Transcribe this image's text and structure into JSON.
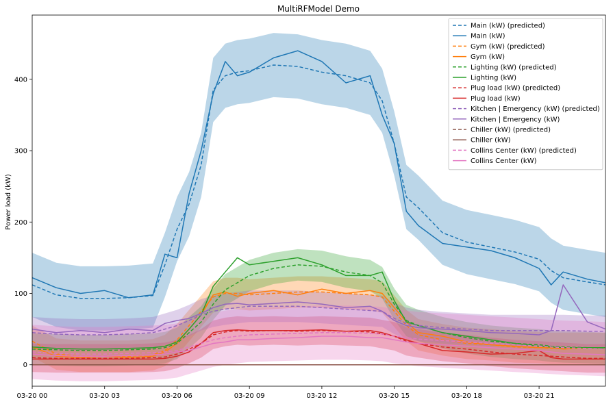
{
  "chart_data": {
    "type": "line",
    "title": "MultiRFModel Demo",
    "xlabel": "",
    "ylabel": "Power load (kW)",
    "x_unit": "hours since 03-20 00:00",
    "xlim": [
      0,
      23.75
    ],
    "ylim": [
      -30,
      490
    ],
    "xticks": [
      {
        "x": 0,
        "label": "03-20 00"
      },
      {
        "x": 3,
        "label": "03-20 03"
      },
      {
        "x": 6,
        "label": "03-20 06"
      },
      {
        "x": 9,
        "label": "03-20 09"
      },
      {
        "x": 12,
        "label": "03-20 12"
      },
      {
        "x": 15,
        "label": "03-20 15"
      },
      {
        "x": 18,
        "label": "03-20 18"
      },
      {
        "x": 21,
        "label": "03-20 21"
      }
    ],
    "yticks": [
      0,
      100,
      200,
      300,
      400
    ],
    "grid": false,
    "legend_position": "top-right",
    "hours": [
      0,
      1,
      2,
      3,
      4,
      5,
      5.5,
      6,
      6.5,
      7,
      7.5,
      8,
      8.5,
      9,
      10,
      11,
      12,
      13,
      14,
      14.5,
      15,
      15.5,
      16,
      17,
      18,
      19,
      20,
      21,
      21.5,
      22,
      23,
      23.75
    ],
    "series": [
      {
        "name": "Main (kW) (predicted)",
        "color": "#1f77b4",
        "dash": true,
        "band": 45,
        "band_opacity": 0.3,
        "values": [
          112,
          98,
          93,
          93,
          94,
          97,
          140,
          190,
          225,
          280,
          385,
          405,
          410,
          412,
          420,
          418,
          410,
          405,
          395,
          370,
          310,
          235,
          220,
          185,
          172,
          165,
          158,
          148,
          132,
          122,
          116,
          112
        ]
      },
      {
        "name": "Main (kW)",
        "color": "#1f77b4",
        "dash": false,
        "values": [
          122,
          108,
          100,
          104,
          94,
          98,
          155,
          150,
          240,
          300,
          380,
          425,
          405,
          410,
          430,
          440,
          425,
          395,
          405,
          350,
          310,
          215,
          195,
          170,
          165,
          160,
          150,
          135,
          112,
          130,
          120,
          115
        ]
      },
      {
        "name": "Gym (kW) (predicted)",
        "color": "#ff7f0e",
        "dash": true,
        "band": 22,
        "band_opacity": 0.3,
        "values": [
          33,
          15,
          12,
          12,
          12,
          14,
          20,
          35,
          55,
          75,
          95,
          100,
          100,
          98,
          100,
          102,
          102,
          100,
          98,
          95,
          75,
          55,
          42,
          35,
          30,
          28,
          25,
          24,
          23,
          23,
          23,
          23
        ]
      },
      {
        "name": "Gym (kW)",
        "color": "#ff7f0e",
        "dash": false,
        "values": [
          25,
          12,
          10,
          12,
          10,
          12,
          18,
          30,
          50,
          70,
          98,
          102,
          96,
          100,
          104,
          98,
          106,
          100,
          104,
          100,
          80,
          60,
          45,
          40,
          32,
          28,
          26,
          24,
          24,
          22,
          24,
          24
        ]
      },
      {
        "name": "Lighting (kW) (predicted)",
        "color": "#2ca02c",
        "dash": true,
        "band": 22,
        "band_opacity": 0.3,
        "values": [
          22,
          21,
          20,
          20,
          21,
          22,
          24,
          30,
          45,
          60,
          85,
          105,
          115,
          125,
          135,
          140,
          138,
          130,
          125,
          115,
          85,
          62,
          55,
          45,
          38,
          33,
          30,
          28,
          26,
          25,
          24,
          23
        ]
      },
      {
        "name": "Lighting (kW)",
        "color": "#2ca02c",
        "dash": false,
        "values": [
          25,
          23,
          22,
          22,
          23,
          24,
          26,
          32,
          50,
          70,
          110,
          130,
          150,
          140,
          145,
          150,
          140,
          125,
          125,
          130,
          90,
          60,
          55,
          45,
          40,
          35,
          30,
          26,
          25,
          24,
          24,
          24
        ]
      },
      {
        "name": "Plug load (kW) (predicted)",
        "color": "#d62728",
        "dash": true,
        "band": 20,
        "band_opacity": 0.3,
        "values": [
          10,
          9,
          9,
          9,
          9,
          10,
          11,
          15,
          22,
          30,
          42,
          46,
          48,
          47,
          48,
          47,
          48,
          47,
          46,
          43,
          40,
          33,
          30,
          25,
          22,
          18,
          15,
          13,
          12,
          11,
          9,
          9
        ]
      },
      {
        "name": "Plug load (kW)",
        "color": "#d62728",
        "dash": false,
        "values": [
          8,
          8,
          8,
          8,
          8,
          8,
          9,
          12,
          18,
          30,
          45,
          48,
          49,
          48,
          48,
          48,
          49,
          47,
          48,
          45,
          40,
          35,
          30,
          20,
          18,
          15,
          16,
          20,
          10,
          8,
          8,
          8
        ]
      },
      {
        "name": "Kitchen | Emergency (kW) (predicted)",
        "color": "#9467bd",
        "dash": true,
        "band": 22,
        "band_opacity": 0.3,
        "values": [
          45,
          43,
          42,
          42,
          43,
          45,
          50,
          55,
          62,
          70,
          75,
          78,
          80,
          82,
          82,
          82,
          80,
          78,
          76,
          75,
          65,
          58,
          55,
          52,
          50,
          48,
          48,
          48,
          48,
          48,
          47,
          47
        ]
      },
      {
        "name": "Kitchen | Emergency (kW)",
        "color": "#9467bd",
        "dash": false,
        "values": [
          50,
          45,
          48,
          45,
          50,
          48,
          58,
          62,
          65,
          72,
          80,
          85,
          86,
          84,
          86,
          88,
          85,
          80,
          82,
          75,
          62,
          55,
          52,
          50,
          48,
          45,
          44,
          42,
          48,
          112,
          60,
          50
        ]
      },
      {
        "name": "Chiller (kW) (predicted)",
        "color": "#8c564b",
        "dash": true,
        "band": 0,
        "band_opacity": 0.3,
        "values": [
          0,
          0,
          0,
          0,
          0,
          0,
          0,
          0,
          0,
          0,
          0,
          0,
          0,
          0,
          0,
          0,
          0,
          0,
          0,
          0,
          0,
          0,
          0,
          0,
          0,
          0,
          0,
          0,
          0,
          0,
          0,
          0
        ]
      },
      {
        "name": "Chiller (kW)",
        "color": "#8c564b",
        "dash": false,
        "values": [
          0,
          0,
          0,
          0,
          0,
          0,
          0,
          0,
          0,
          0,
          0,
          0,
          0,
          0,
          0,
          0,
          0,
          0,
          0,
          0,
          0,
          0,
          0,
          0,
          0,
          0,
          0,
          0,
          0,
          0,
          0,
          0
        ]
      },
      {
        "name": "Collins Center (kW) (predicted)",
        "color": "#e377c2",
        "dash": true,
        "band": 38,
        "band_opacity": 0.3,
        "values": [
          18,
          16,
          15,
          15,
          16,
          17,
          18,
          20,
          25,
          30,
          35,
          38,
          40,
          42,
          43,
          44,
          45,
          45,
          44,
          43,
          40,
          38,
          36,
          34,
          32,
          30,
          28,
          26,
          25,
          24,
          23,
          22
        ]
      },
      {
        "name": "Collins Center (kW)",
        "color": "#e377c2",
        "dash": false,
        "values": [
          15,
          13,
          12,
          12,
          13,
          14,
          15,
          18,
          20,
          25,
          30,
          32,
          35,
          35,
          37,
          38,
          40,
          40,
          38,
          38,
          35,
          32,
          30,
          28,
          26,
          24,
          22,
          20,
          18,
          16,
          15,
          14
        ]
      }
    ]
  }
}
